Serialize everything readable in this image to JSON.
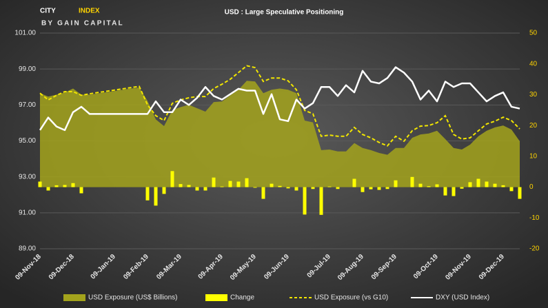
{
  "logo": {
    "brand_left": "CITY",
    "brand_right": "INDEX",
    "tagline": "BY GAIN CAPITAL"
  },
  "chart_data": {
    "type": "combo",
    "title": "USD : Large Speculative Positioning",
    "categories": [
      "09-Nov-18",
      null,
      null,
      null,
      "09-Dec-18",
      null,
      null,
      null,
      null,
      "09-Jan-19",
      null,
      null,
      null,
      "09-Feb-19",
      null,
      null,
      null,
      "09-Mar-19",
      null,
      null,
      null,
      null,
      "09-Apr-19",
      null,
      null,
      null,
      "09-May-19",
      null,
      null,
      null,
      "09-Jun-19",
      null,
      null,
      null,
      null,
      "09-Jul-19",
      null,
      null,
      null,
      "09-Aug-19",
      null,
      null,
      null,
      "09-Sep-19",
      null,
      null,
      null,
      null,
      "09-Oct-19",
      null,
      null,
      null,
      "09-Nov-19",
      null,
      null,
      null,
      "09-Dec-19",
      null,
      null
    ],
    "ylim": [
      89,
      101
    ],
    "yticks": [
      {
        "value": 89,
        "label": "89.00"
      },
      {
        "value": 91,
        "label": "91.00"
      },
      {
        "value": 93,
        "label": "93.00"
      },
      {
        "value": 95,
        "label": "95.00"
      },
      {
        "value": 97,
        "label": "97.00"
      },
      {
        "value": 99,
        "label": "99.00"
      },
      {
        "value": 101,
        "label": "101.00"
      }
    ],
    "y2lim": [
      -20,
      50
    ],
    "y2ticks": [
      -20,
      -10,
      0,
      10,
      20,
      30,
      40,
      50
    ],
    "grid": true,
    "legend": "bottom",
    "series": [
      {
        "name": "USD Exposure (US$ Billions)",
        "type": "area",
        "axis": "y2",
        "color": "#a3a31c",
        "values": [
          30.5,
          29.4,
          30,
          30.7,
          32,
          30,
          30,
          30.4,
          30.8,
          31.2,
          31.6,
          32,
          32.3,
          28,
          22,
          19.8,
          25,
          26,
          26.7,
          25.6,
          24.5,
          27.6,
          27.8,
          29.8,
          31.6,
          34.5,
          34.3,
          30.5,
          31.6,
          32,
          31.6,
          30.5,
          21.6,
          21,
          12,
          12.2,
          11.6,
          11.6,
          14.3,
          12.7,
          12,
          11.1,
          10.5,
          12.7,
          12.7,
          16,
          17.1,
          17.4,
          18.3,
          15.6,
          12.7,
          12.2,
          13.8,
          16.5,
          18.3,
          19.4,
          20,
          18.7,
          14.9
        ]
      },
      {
        "name": "Change",
        "type": "bar",
        "axis": "y2",
        "color": "#ffff00",
        "values": [
          1.8,
          -1.1,
          0.6,
          0.7,
          1.3,
          -2,
          0,
          null,
          null,
          null,
          null,
          null,
          null,
          -4.3,
          -6,
          -2.2,
          5.2,
          1,
          0.7,
          -1.1,
          -1.1,
          3.1,
          0.2,
          2,
          1.8,
          2.9,
          -0.2,
          -3.8,
          1.1,
          0.4,
          -0.4,
          -1.1,
          -8.9,
          -0.6,
          -9,
          0.2,
          -0.6,
          0,
          2.7,
          -1.6,
          -0.7,
          -0.9,
          -0.6,
          2.2,
          0,
          3.3,
          1.1,
          0.3,
          0.9,
          -2.7,
          -2.9,
          -0.5,
          1.6,
          2.7,
          1.8,
          1.1,
          0.6,
          -1.3,
          -3.8
        ]
      },
      {
        "name": "USD Exposure (vs G10)",
        "type": "dashed-line",
        "axis": "y2",
        "color": "#f2e600",
        "values": [
          30.5,
          28.3,
          29.8,
          31,
          31,
          29.8,
          30.3,
          30.7,
          31.1,
          31.5,
          31.9,
          32.3,
          32.7,
          26.7,
          23.2,
          21.6,
          27.2,
          28.3,
          29,
          29.4,
          29.4,
          32,
          33.4,
          35,
          37.2,
          39.4,
          38.8,
          34.3,
          35.4,
          35.4,
          34.5,
          31.6,
          24.9,
          23.8,
          16.5,
          16.9,
          16.5,
          16.5,
          19.4,
          17.1,
          16,
          14.5,
          13.4,
          16.5,
          14.9,
          18.3,
          19.8,
          20,
          20.9,
          23.2,
          17.1,
          15.6,
          16,
          18.3,
          20.5,
          21.4,
          22.7,
          21.6,
          18.9
        ]
      },
      {
        "name": "DXY (USD Index)",
        "type": "line",
        "axis": "y",
        "color": "#ffffff",
        "values": [
          95.6,
          96.3,
          95.8,
          95.6,
          96.6,
          96.9,
          96.5,
          96.5,
          96.5,
          96.5,
          96.5,
          96.5,
          96.5,
          96.5,
          97.2,
          96.6,
          96.6,
          97.3,
          97,
          97.4,
          98,
          97.5,
          97.3,
          97.6,
          97.9,
          97.8,
          97.8,
          96.5,
          97.6,
          96.2,
          96.1,
          97.3,
          96.8,
          97.1,
          98,
          98,
          97.5,
          98.1,
          97.7,
          98.9,
          98.3,
          98.2,
          98.5,
          99.1,
          98.8,
          98.3,
          97.3,
          97.8,
          97.2,
          98.3,
          98,
          98.2,
          98.2,
          97.7,
          97.2,
          97.5,
          97.7,
          96.9,
          96.8
        ]
      }
    ]
  }
}
